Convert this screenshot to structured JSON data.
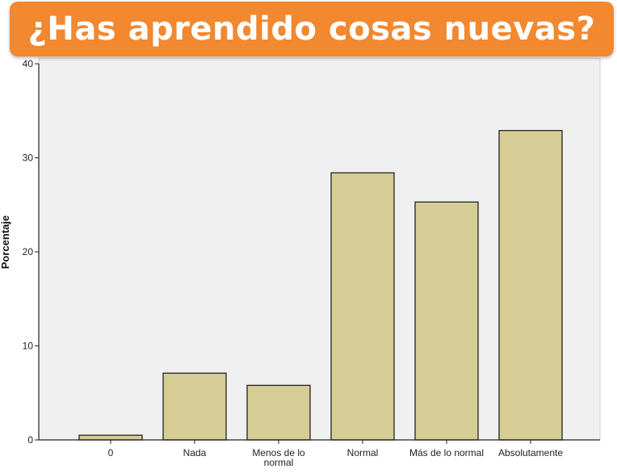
{
  "title": "¿Has aprendido cosas nuevas?",
  "colors": {
    "banner": "#f2882f",
    "title_text": "#ffffff",
    "plot_background": "#f0f0f0",
    "bar_fill": "#d6cd96",
    "bar_stroke": "#222222"
  },
  "chart_data": {
    "type": "bar",
    "title": "",
    "xlabel": "",
    "ylabel": "Porcentaje",
    "ylim": [
      0,
      40
    ],
    "yticks": [
      0,
      10,
      20,
      30,
      40
    ],
    "grid": false,
    "categories": [
      [
        "0"
      ],
      [
        "Nada"
      ],
      [
        "Menos de lo",
        "normal"
      ],
      [
        "Normal"
      ],
      [
        "Más de lo normal"
      ],
      [
        "Absolutamente"
      ]
    ],
    "values": [
      0.5,
      7.1,
      5.8,
      28.4,
      25.3,
      32.9
    ]
  }
}
